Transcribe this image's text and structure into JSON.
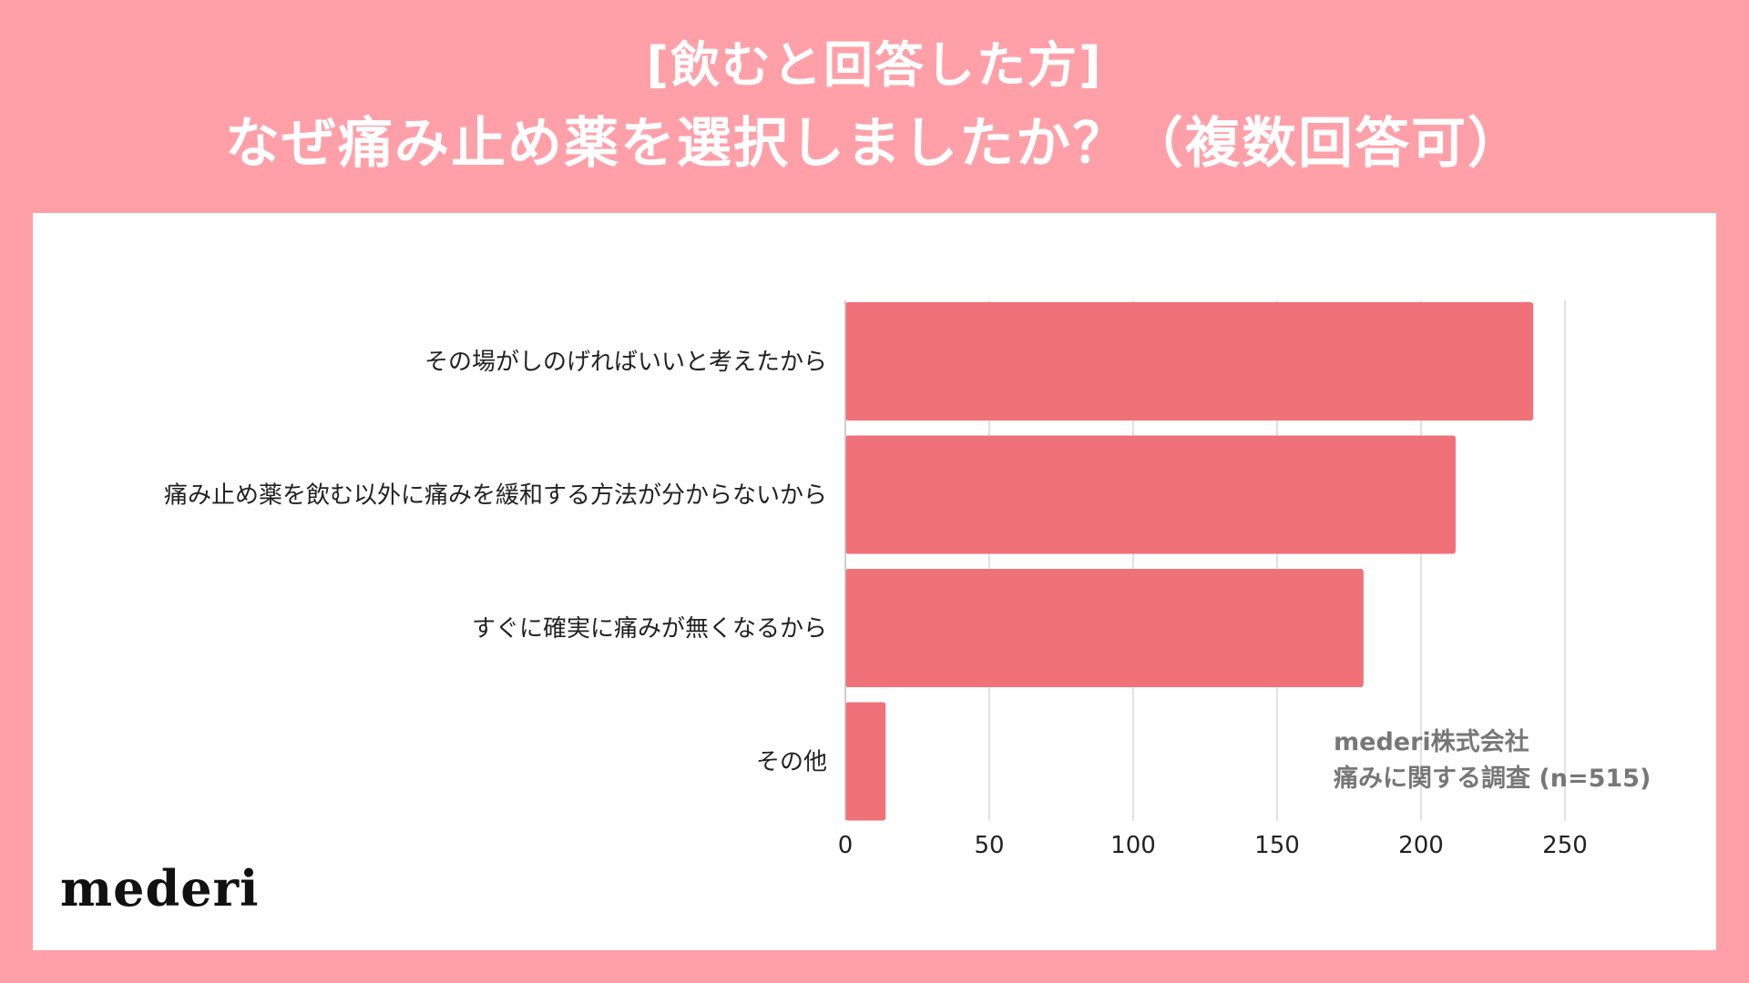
{
  "header": {
    "subtitle": "[飲むと回答した方]",
    "title": "なぜ痛み止め薬を選択しましたか？（複数回答可）"
  },
  "logo": "mederi",
  "source": {
    "line1": "mederi株式会社",
    "line2": "痛みに関する調査 (n=515)"
  },
  "colors": {
    "background": "#ffa0a8",
    "bar": "#f07178",
    "grid": "#d9d9d9"
  },
  "chart_data": {
    "type": "bar",
    "orientation": "horizontal",
    "categories": [
      "その場がしのげればいいと考えたから",
      "痛み止め薬を飲む以外に痛みを緩和する方法が分からないから",
      "すぐに確実に痛みが無くなるから",
      "その他"
    ],
    "values": [
      239,
      212,
      180,
      14
    ],
    "xlim": [
      0,
      250
    ],
    "xticks": [
      0,
      50,
      100,
      150,
      200,
      250
    ],
    "xtick_labels": [
      "0",
      "50",
      "100",
      "150",
      "200",
      "250"
    ],
    "grid": true
  }
}
